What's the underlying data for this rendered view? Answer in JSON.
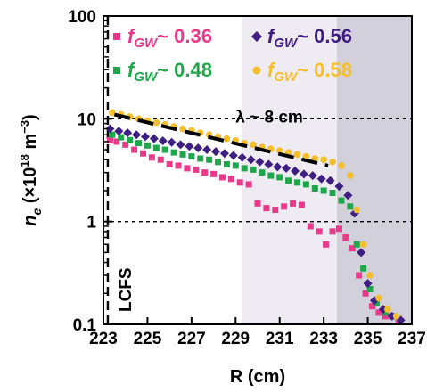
{
  "chart_data": {
    "type": "scatter",
    "xlabel": "R (cm)",
    "ylabel_main": "n",
    "ylabel_sub": "e",
    "ylabel_rest": " (×10",
    "ylabel_exp1": "18",
    "ylabel_mid": " m",
    "ylabel_exp2": "−3",
    "ylabel_end": ")",
    "xlim": [
      223,
      237
    ],
    "ylim": [
      0.1,
      100
    ],
    "yscale": "log",
    "xticks": [
      223,
      225,
      227,
      229,
      231,
      233,
      235,
      237
    ],
    "yticks": [
      0.1,
      1,
      10,
      100
    ],
    "ytick_labels": [
      "0.1",
      "1",
      "10",
      "100"
    ],
    "hlines": [
      1,
      10
    ],
    "lcfs_x": 223.2,
    "lcfs_label": "LCFS",
    "shaded_regions": [
      {
        "x": [
          229.3,
          233.6
        ],
        "color": "#eeebf3"
      },
      {
        "x": [
          233.6,
          237
        ],
        "color": "#d2d0db"
      }
    ],
    "fit_line": {
      "x": [
        223.5,
        233.2
      ],
      "y": [
        11,
        3.5
      ],
      "label": "λ ~ 8 cm"
    },
    "series": [
      {
        "name": "0.36",
        "marker": "square",
        "color": "#e8398a",
        "x": [
          223.3,
          223.6,
          224.0,
          224.4,
          224.8,
          225.2,
          225.6,
          226.0,
          226.4,
          226.8,
          227.2,
          227.6,
          228.0,
          228.4,
          228.8,
          229.2,
          229.6,
          230.0,
          230.4,
          230.8,
          231.2,
          231.6,
          232.0,
          232.4,
          232.8,
          233.1,
          233.4,
          233.7,
          234.0,
          234.3,
          234.6,
          234.9,
          235.2,
          235.5,
          235.8,
          236.1,
          236.4
        ],
        "y": [
          6.2,
          6.0,
          5.6,
          5.0,
          4.6,
          4.2,
          4.0,
          3.6,
          3.5,
          3.3,
          3.2,
          3.0,
          2.9,
          2.7,
          2.6,
          2.4,
          2.3,
          1.5,
          1.35,
          1.3,
          1.4,
          1.5,
          1.45,
          0.9,
          0.8,
          0.6,
          0.8,
          0.85,
          0.7,
          0.55,
          0.3,
          0.2,
          0.15,
          0.13,
          0.12,
          0.12,
          0.11
        ]
      },
      {
        "name": "0.48",
        "marker": "square",
        "color": "#1fa64a",
        "x": [
          223.4,
          223.8,
          224.2,
          224.6,
          225.0,
          225.4,
          225.8,
          226.2,
          226.6,
          227.0,
          227.4,
          227.8,
          228.2,
          228.6,
          229.0,
          229.4,
          229.8,
          230.2,
          230.6,
          231.0,
          231.4,
          231.8,
          232.2,
          232.6,
          233.0,
          233.4,
          233.8,
          234.2,
          234.5,
          234.8,
          235.1,
          235.4,
          235.8,
          236.2
        ],
        "y": [
          7.0,
          6.6,
          6.2,
          5.8,
          5.5,
          5.2,
          5.0,
          4.7,
          4.5,
          4.3,
          4.1,
          4.0,
          3.8,
          3.6,
          3.5,
          3.3,
          3.2,
          3.0,
          2.8,
          2.7,
          2.5,
          2.4,
          2.3,
          2.1,
          2.0,
          1.9,
          1.6,
          1.4,
          0.6,
          0.35,
          0.22,
          0.16,
          0.13,
          0.12
        ]
      },
      {
        "name": "0.56",
        "marker": "diamond",
        "color": "#3f1e82",
        "x": [
          223.3,
          223.7,
          224.1,
          224.5,
          224.9,
          225.3,
          225.7,
          226.1,
          226.5,
          226.9,
          227.3,
          227.7,
          228.1,
          228.5,
          228.9,
          229.3,
          229.7,
          230.1,
          230.5,
          230.9,
          231.3,
          231.7,
          232.1,
          232.5,
          232.9,
          233.3,
          233.7,
          234.1,
          234.4,
          234.7,
          235.0,
          235.3,
          235.7,
          236.1,
          236.5
        ],
        "y": [
          8.0,
          7.6,
          7.3,
          7.0,
          6.7,
          6.4,
          6.1,
          5.9,
          5.6,
          5.4,
          5.2,
          5.0,
          4.8,
          4.6,
          4.4,
          4.2,
          4.0,
          3.8,
          3.6,
          3.4,
          3.3,
          3.1,
          2.9,
          2.8,
          2.6,
          2.5,
          2.2,
          1.8,
          1.2,
          0.5,
          0.25,
          0.17,
          0.14,
          0.12,
          0.11
        ]
      },
      {
        "name": "0.58",
        "marker": "circle",
        "color": "#f4bf2a",
        "x": [
          223.4,
          223.8,
          224.2,
          224.6,
          225.0,
          225.4,
          225.8,
          226.2,
          226.6,
          227.0,
          227.4,
          227.8,
          228.2,
          228.6,
          229.0,
          229.4,
          229.8,
          230.2,
          230.6,
          231.0,
          231.4,
          231.8,
          232.2,
          232.6,
          233.0,
          233.4,
          233.8,
          234.2,
          234.5,
          234.8,
          235.1,
          235.5,
          235.9,
          236.3
        ],
        "y": [
          11.5,
          11.0,
          10.5,
          10.0,
          9.6,
          9.2,
          8.8,
          8.4,
          8.0,
          7.7,
          7.3,
          7.0,
          6.7,
          6.4,
          6.1,
          5.8,
          5.6,
          5.3,
          5.1,
          4.9,
          4.7,
          4.5,
          4.3,
          4.1,
          4.0,
          3.8,
          3.5,
          2.8,
          1.3,
          0.6,
          0.3,
          0.18,
          0.14,
          0.12
        ]
      }
    ],
    "legend": [
      {
        "label": "~ 0.36",
        "symbol": "square",
        "color": "#e8398a"
      },
      {
        "label": "~ 0.56",
        "symbol": "diamond",
        "color": "#3f1e82"
      },
      {
        "label": "~ 0.48",
        "symbol": "square",
        "color": "#1fa64a"
      },
      {
        "label": "~ 0.58",
        "symbol": "circle",
        "color": "#f4bf2a"
      }
    ],
    "legend_f": "f",
    "legend_sub": "GW"
  }
}
